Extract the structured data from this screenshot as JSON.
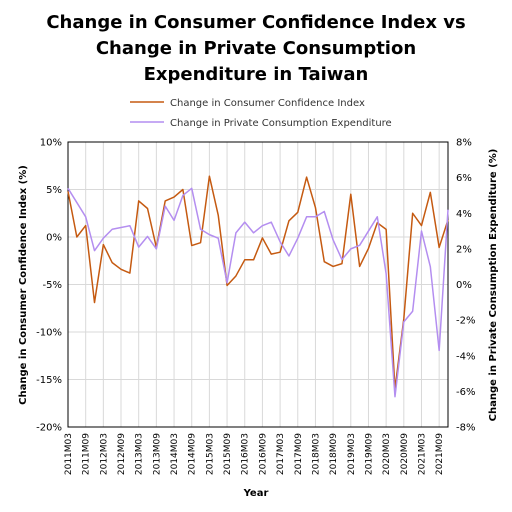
{
  "chart_data": {
    "type": "line",
    "title_lines": [
      "Change in Consumer Confidence Index vs",
      "Change in Private Consumption",
      "Expenditure in Taiwan"
    ],
    "xlabel": "Year",
    "ylabel_left": "Change in Consumer Confidence Index (%)",
    "ylabel_right": "Change in Private Consumption Expenditure (%)",
    "ylim_left": [
      -20,
      10
    ],
    "ylim_right": [
      -8,
      8
    ],
    "yticks_left": [
      "10%",
      "5%",
      "0%",
      "-5%",
      "-10%",
      "-15%",
      "-20%"
    ],
    "yticks_right": [
      "8%",
      "6%",
      "4%",
      "2%",
      "0%",
      "-2%",
      "-4%",
      "-6%",
      "-8%"
    ],
    "x_tick_labels": [
      "2011M03",
      "2011M09",
      "2012M03",
      "2012M09",
      "2013M03",
      "2013M09",
      "2014M03",
      "2014M09",
      "2015M03",
      "2015M09",
      "2016M03",
      "2016M09",
      "2017M03",
      "2017M09",
      "2018M03",
      "2018M09",
      "2019M03",
      "2019M09",
      "2020M03",
      "2020M09",
      "2021M03",
      "2021M09"
    ],
    "grid": true,
    "legend_position": "top",
    "x": [
      "2011M03",
      "2011M06",
      "2011M09",
      "2011M12",
      "2012M03",
      "2012M06",
      "2012M09",
      "2012M12",
      "2013M03",
      "2013M06",
      "2013M09",
      "2013M12",
      "2014M03",
      "2014M06",
      "2014M09",
      "2014M12",
      "2015M03",
      "2015M06",
      "2015M09",
      "2015M12",
      "2016M03",
      "2016M06",
      "2016M09",
      "2016M12",
      "2017M03",
      "2017M06",
      "2017M09",
      "2017M12",
      "2018M03",
      "2018M06",
      "2018M09",
      "2018M12",
      "2019M03",
      "2019M06",
      "2019M09",
      "2019M12",
      "2020M03",
      "2020M06",
      "2020M09",
      "2020M12",
      "2021M03",
      "2021M06",
      "2021M09",
      "2021M12"
    ],
    "series": [
      {
        "name": "Change in Consumer Confidence Index",
        "axis": "left",
        "color": "#C55A11",
        "values": [
          4.8,
          0,
          1.2,
          -6.9,
          -0.8,
          -2.7,
          -3.4,
          -3.8,
          3.8,
          3.0,
          -1.1,
          3.8,
          4.2,
          5.0,
          -0.9,
          -0.6,
          6.4,
          2.3,
          -5.1,
          -4.1,
          -2.4,
          -2.4,
          -0.1,
          -1.8,
          -1.6,
          1.7,
          2.6,
          6.3,
          3.1,
          -2.6,
          -3.1,
          -2.8,
          4.5,
          -3.1,
          -1.2,
          1.5,
          0.8,
          -16.0,
          -8.6,
          2.5,
          1.2,
          4.7,
          -1.1,
          1.8
        ]
      },
      {
        "name": "Change in Private Consumption Expenditure",
        "axis": "right",
        "color": "#B48EF0",
        "values": [
          5.4,
          4.6,
          3.8,
          1.9,
          2.6,
          3.1,
          3.2,
          3.3,
          2.1,
          2.7,
          2.0,
          4.4,
          3.6,
          5.0,
          5.4,
          3.1,
          2.8,
          2.6,
          0.1,
          2.9,
          3.5,
          2.9,
          3.3,
          3.5,
          2.4,
          1.6,
          2.6,
          3.8,
          3.8,
          4.1,
          2.5,
          1.4,
          2.0,
          2.2,
          3.0,
          3.8,
          0.6,
          -6.3,
          -2.1,
          -1.5,
          3.0,
          1.0,
          -3.7,
          4.2
        ]
      }
    ]
  }
}
